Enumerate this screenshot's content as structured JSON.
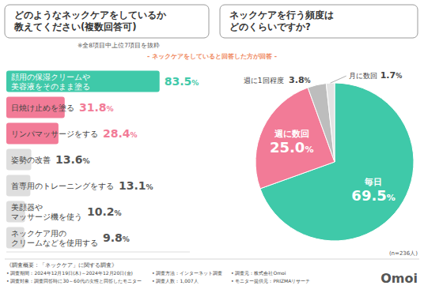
{
  "chart_data": [
    {
      "type": "bar",
      "orientation": "horizontal",
      "title": "どのようなネックケアをしているか\n教えてください(複数回答可)",
      "subtitle": "※全8項目中上位7項目を抜粋",
      "annotation": "- ネックケアをしていると回答した方が回答 -",
      "categories": [
        "顔用の保湿クリームや\n美容液をそのまま塗る",
        "日焼け止めを塗る",
        "リンパマッサージをする",
        "姿勢の改善",
        "首専用のトレーニングをする",
        "美顔器や\nマッサージ機を使う",
        "ネックケア用の\nクリームなどを使用する"
      ],
      "values": [
        83.5,
        31.8,
        28.4,
        13.6,
        13.1,
        10.2,
        9.8
      ],
      "value_labels": [
        "83.5%",
        "31.8%",
        "28.4%",
        "13.6%",
        "13.1%",
        "10.2%",
        "9.8%"
      ],
      "colors": [
        "#3fc9a9",
        "#f27b97",
        "#f27b97",
        "#dedede",
        "#dedede",
        "#dedede",
        "#dedede"
      ],
      "xlim": [
        0,
        100
      ],
      "grid": false,
      "data_labels": true
    },
    {
      "type": "pie",
      "title": "ネックケアを行う頻度は\nどのくらいですか?",
      "annotation": "(n=236人)",
      "categories": [
        "毎日",
        "週に数回",
        "週に1回程度",
        "月に数回"
      ],
      "values": [
        69.5,
        25.0,
        3.8,
        1.7
      ],
      "value_labels": [
        "69.5%",
        "25.0%",
        "3.8%",
        "1.7%"
      ],
      "colors": [
        "#3fc9a9",
        "#f27b97",
        "#bdbdbd",
        "#e3e3e3"
      ],
      "data_labels": true
    }
  ],
  "survey": {
    "heading": "《調査概要：「ネックケア」に関する調査》",
    "items": [
      "• 調査期間：2024年12月19日(木)～2024年12月20日(金)",
      "• 調査方法：インターネット調査",
      "• 調査元：株式会社Omoi",
      "• 調査対象：調査回答時に30～60代の女性と回答したモニター",
      "• 調査人数：1,007人",
      "• モニター提供元：PRIZMAリサーチ"
    ]
  },
  "brand": "Omoi"
}
